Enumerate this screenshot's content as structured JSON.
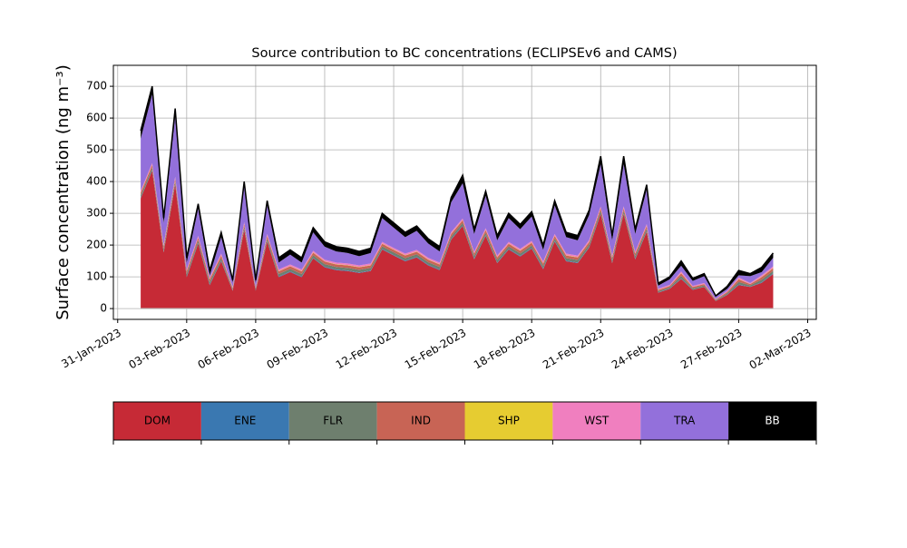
{
  "chart_data": {
    "type": "stacked_area",
    "title": "Source contribution to BC concentrations (ECLIPSEv6 and CAMS)",
    "y_label": "Surface concentration (ng m⁻³)",
    "x": [
      "2023-02-01T00:00",
      "2023-02-01T12:00",
      "2023-02-02T00:00",
      "2023-02-02T12:00",
      "2023-02-03T00:00",
      "2023-02-03T12:00",
      "2023-02-04T00:00",
      "2023-02-04T12:00",
      "2023-02-05T00:00",
      "2023-02-05T12:00",
      "2023-02-06T00:00",
      "2023-02-06T12:00",
      "2023-02-07T00:00",
      "2023-02-07T12:00",
      "2023-02-08T00:00",
      "2023-02-08T12:00",
      "2023-02-09T00:00",
      "2023-02-09T12:00",
      "2023-02-10T00:00",
      "2023-02-10T12:00",
      "2023-02-11T00:00",
      "2023-02-11T12:00",
      "2023-02-12T00:00",
      "2023-02-12T12:00",
      "2023-02-13T00:00",
      "2023-02-13T12:00",
      "2023-02-14T00:00",
      "2023-02-14T12:00",
      "2023-02-15T00:00",
      "2023-02-15T12:00",
      "2023-02-16T00:00",
      "2023-02-16T12:00",
      "2023-02-17T00:00",
      "2023-02-17T12:00",
      "2023-02-18T00:00",
      "2023-02-18T12:00",
      "2023-02-19T00:00",
      "2023-02-19T12:00",
      "2023-02-20T00:00",
      "2023-02-20T12:00",
      "2023-02-21T00:00",
      "2023-02-21T12:00",
      "2023-02-22T00:00",
      "2023-02-22T12:00",
      "2023-02-23T00:00",
      "2023-02-23T12:00",
      "2023-02-24T00:00",
      "2023-02-24T12:00",
      "2023-02-25T00:00",
      "2023-02-25T12:00",
      "2023-02-26T00:00",
      "2023-02-26T12:00",
      "2023-02-27T00:00",
      "2023-02-27T12:00",
      "2023-02-28T00:00",
      "2023-02-28T12:00"
    ],
    "series": [
      {
        "name": "DOM",
        "color": "#c62a36",
        "values": [
          347,
          434,
          177,
          391,
          99,
          205,
          74,
          149,
          56,
          248,
          56,
          211,
          99,
          115,
          99,
          158,
          130,
          121,
          118,
          112,
          118,
          186,
          167,
          149,
          161,
          136,
          121,
          217,
          260,
          155,
          229,
          143,
          186,
          164,
          189,
          124,
          211,
          149,
          143,
          192,
          298,
          143,
          298,
          155,
          242,
          50,
          62,
          93,
          59,
          68,
          24,
          43,
          74,
          68,
          81,
          109
        ]
      },
      {
        "name": "ENE",
        "color": "#3a78b1",
        "values": [
          2,
          2,
          2,
          2,
          2,
          2,
          2,
          2,
          1,
          2,
          1,
          2,
          2,
          2,
          2,
          2,
          2,
          2,
          2,
          2,
          2,
          2,
          2,
          2,
          2,
          2,
          2,
          2,
          2,
          2,
          2,
          2,
          2,
          2,
          2,
          2,
          2,
          2,
          2,
          2,
          2,
          2,
          2,
          2,
          2,
          1,
          1,
          2,
          1,
          1,
          0.5,
          1,
          2,
          1,
          2,
          2
        ]
      },
      {
        "name": "FLR",
        "color": "#6e7f6e",
        "values": [
          8,
          8,
          8,
          8,
          8,
          8,
          8,
          8,
          4,
          8,
          4,
          8,
          8,
          8,
          8,
          8,
          8,
          8,
          8,
          8,
          8,
          8,
          8,
          8,
          8,
          8,
          8,
          8,
          8,
          8,
          8,
          8,
          8,
          8,
          8,
          8,
          8,
          8,
          8,
          8,
          8,
          8,
          8,
          8,
          8,
          4,
          4,
          8,
          4,
          4,
          2,
          4,
          8,
          4,
          8,
          8
        ]
      },
      {
        "name": "IND",
        "color": "#c86455",
        "values": [
          8,
          8,
          8,
          8,
          8,
          8,
          8,
          8,
          4,
          8,
          4,
          8,
          8,
          8,
          8,
          8,
          8,
          8,
          8,
          8,
          8,
          8,
          8,
          8,
          8,
          8,
          8,
          8,
          8,
          8,
          8,
          8,
          8,
          8,
          8,
          8,
          8,
          8,
          8,
          8,
          8,
          8,
          8,
          8,
          8,
          4,
          4,
          8,
          4,
          4,
          2,
          4,
          8,
          4,
          8,
          8
        ]
      },
      {
        "name": "SHP",
        "color": "#e6cc31",
        "values": [
          1,
          1,
          1,
          1,
          1,
          1,
          1,
          1,
          0.5,
          1,
          0.5,
          1,
          1,
          1,
          1,
          1,
          1,
          1,
          1,
          1,
          1,
          1,
          1,
          1,
          1,
          1,
          1,
          1,
          1,
          1,
          1,
          1,
          1,
          1,
          1,
          1,
          1,
          1,
          1,
          1,
          1,
          1,
          1,
          1,
          1,
          0.5,
          0.5,
          1,
          0.5,
          0.5,
          0.2,
          0.5,
          1,
          0.5,
          1,
          1
        ]
      },
      {
        "name": "WST",
        "color": "#f07fbf",
        "values": [
          5,
          5,
          5,
          5,
          5,
          5,
          5,
          5,
          3,
          5,
          3,
          5,
          5,
          5,
          5,
          5,
          5,
          5,
          5,
          5,
          5,
          5,
          5,
          5,
          5,
          5,
          5,
          5,
          5,
          5,
          5,
          5,
          5,
          5,
          5,
          5,
          5,
          5,
          5,
          5,
          5,
          5,
          5,
          5,
          5,
          3,
          3,
          5,
          3,
          3,
          1.5,
          3,
          5,
          3,
          5,
          5
        ]
      },
      {
        "name": "TRA",
        "color": "#9370db",
        "values": [
          164,
          217,
          69,
          190,
          22,
          86,
          7,
          52,
          13.5,
          113,
          13.5,
          90,
          22,
          31,
          22,
          58,
          41,
          35,
          33,
          29,
          33,
          75,
          64,
          52,
          60,
          45,
          35,
          94,
          111,
          56,
          102,
          48,
          75,
          62,
          77,
          37,
          90,
          52,
          48,
          79,
          133,
          48,
          133,
          56,
          109,
          9.5,
          17.5,
          18,
          15.5,
          21.5,
          6.8,
          6.5,
          7,
          21.5,
          10,
          27
        ]
      },
      {
        "name": "BB",
        "color": "#000000",
        "values": [
          25,
          25,
          15,
          25,
          15,
          15,
          15,
          15,
          8,
          15,
          8,
          15,
          15,
          15,
          15,
          15,
          15,
          15,
          15,
          15,
          15,
          15,
          15,
          15,
          15,
          15,
          15,
          15,
          25,
          15,
          15,
          15,
          15,
          15,
          15,
          15,
          15,
          15,
          15,
          15,
          25,
          15,
          25,
          15,
          15,
          8,
          8,
          15,
          8,
          8,
          3,
          8,
          15,
          8,
          15,
          15
        ]
      }
    ],
    "xlim": [
      "2023-01-30T19:30",
      "2023-03-02T09:00"
    ],
    "xticks": [
      {
        "value": "2023-01-31",
        "label": "31-Jan-2023"
      },
      {
        "value": "2023-02-03",
        "label": "03-Feb-2023"
      },
      {
        "value": "2023-02-06",
        "label": "06-Feb-2023"
      },
      {
        "value": "2023-02-09",
        "label": "09-Feb-2023"
      },
      {
        "value": "2023-02-12",
        "label": "12-Feb-2023"
      },
      {
        "value": "2023-02-15",
        "label": "15-Feb-2023"
      },
      {
        "value": "2023-02-18",
        "label": "18-Feb-2023"
      },
      {
        "value": "2023-02-21",
        "label": "21-Feb-2023"
      },
      {
        "value": "2023-02-24",
        "label": "24-Feb-2023"
      },
      {
        "value": "2023-02-27",
        "label": "27-Feb-2023"
      },
      {
        "value": "2023-03-02",
        "label": "02-Mar-2023"
      }
    ],
    "ylim": [
      -34,
      766
    ],
    "yticks": [
      0,
      100,
      200,
      300,
      400,
      500,
      600,
      700
    ],
    "grid": true
  }
}
